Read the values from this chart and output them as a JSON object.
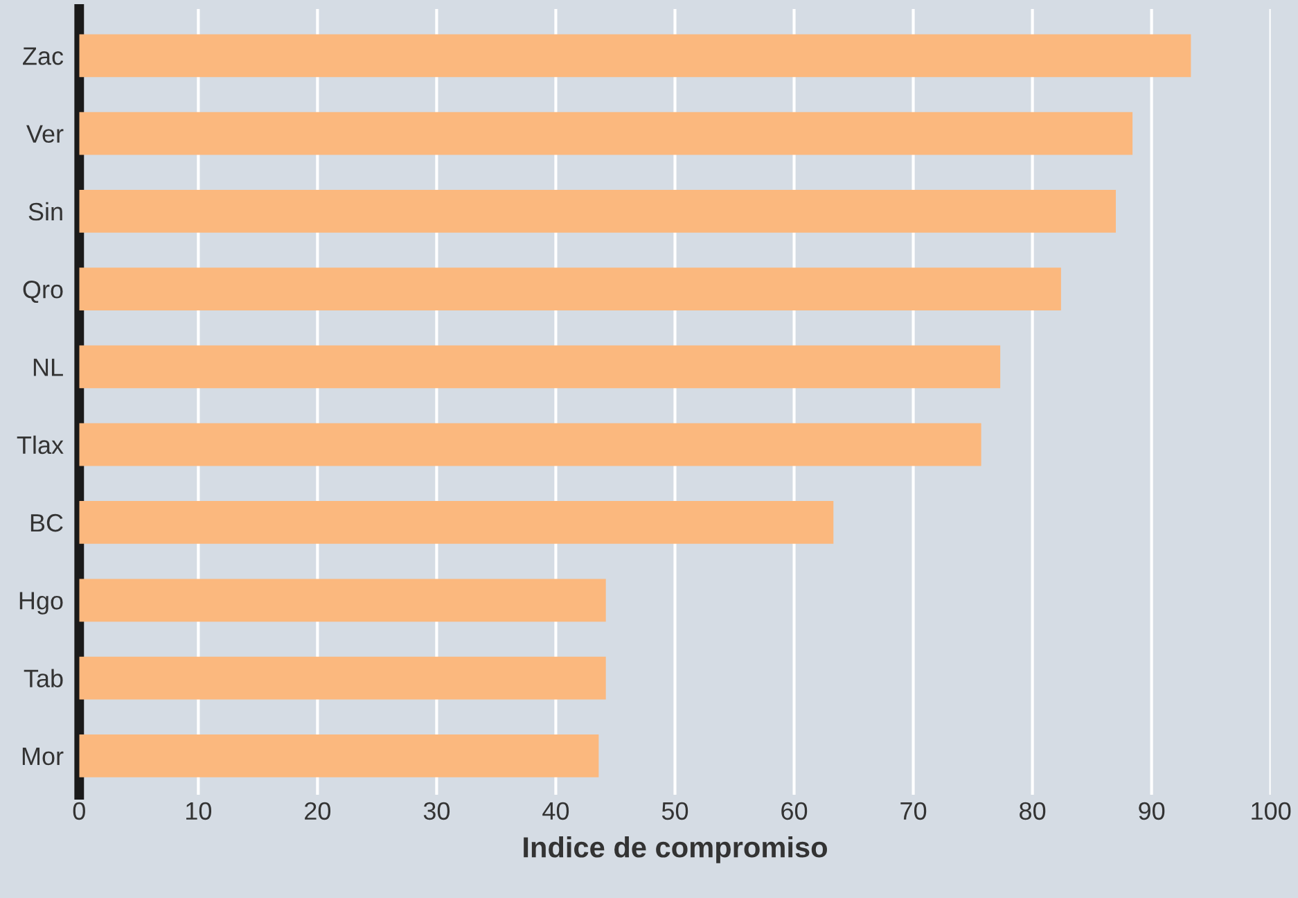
{
  "chart_data": {
    "type": "bar",
    "orientation": "horizontal",
    "xlabel": "Indice de compromiso",
    "categories": [
      "Zac",
      "Ver",
      "Sin",
      "Qro",
      "NL",
      "Tlax",
      "BC",
      "Hgo",
      "Tab",
      "Mor"
    ],
    "values": [
      93.3,
      88.4,
      87.0,
      82.4,
      77.3,
      75.7,
      63.3,
      44.2,
      44.2,
      43.6
    ],
    "color": "#fbb87e",
    "xlim": [
      0,
      100
    ],
    "xticks": [
      0,
      10,
      20,
      30,
      40,
      50,
      60,
      70,
      80,
      90,
      100
    ],
    "grid": "x"
  }
}
